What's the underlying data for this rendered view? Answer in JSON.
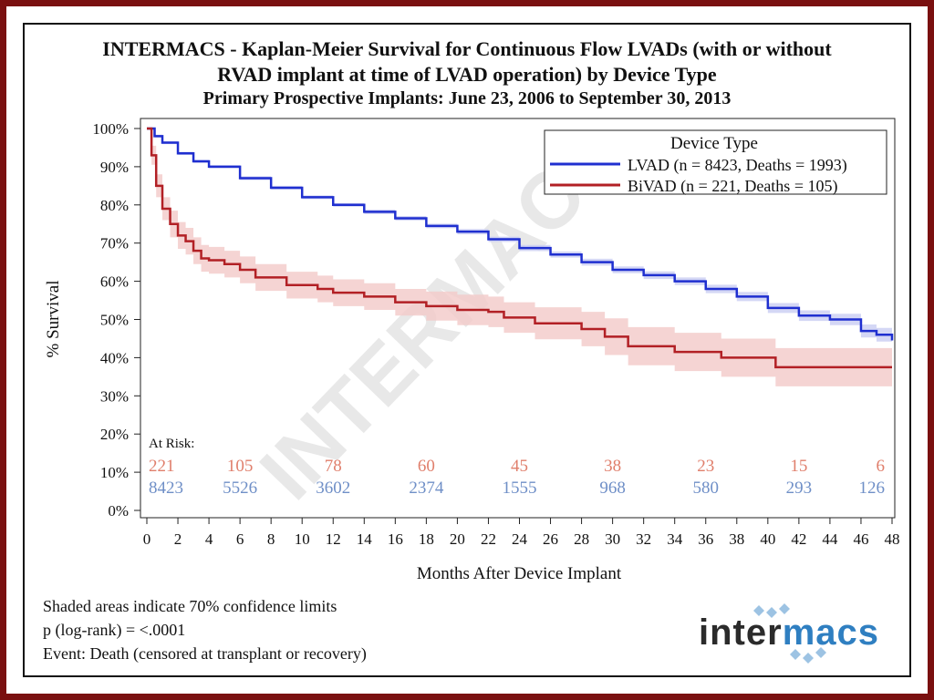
{
  "title_line1": "INTERMACS - Kaplan-Meier Survival for Continuous Flow LVADs (with or without",
  "title_line2": "RVAD implant at time of LVAD operation) by Device Type",
  "subtitle": "Primary Prospective Implants: June 23, 2006 to September 30, 2013",
  "watermark": "INTERMACS",
  "notes": [
    "Shaded areas indicate 70% confidence limits",
    "p (log-rank) = <.0001",
    "Event: Death (censored at transplant or recovery)"
  ],
  "logo": {
    "part1": "inter",
    "part2": "macs",
    "color1": "#2b2b2b",
    "color2": "#2f7fc1"
  },
  "colors": {
    "lvad": "#1f2fd0",
    "bivad": "#b22025",
    "lvad_band": "#c9cdf2",
    "bivad_band": "#f3c9c8",
    "lvad_risk": "#6f8fc7",
    "bivad_risk": "#e07f6c",
    "frame": "#7a1010"
  },
  "chart_data": {
    "type": "line",
    "xlabel": "Months After Device Implant",
    "ylabel": "% Survival",
    "xlim": [
      0,
      48
    ],
    "ylim": [
      0,
      100
    ],
    "x_ticks": [
      "0",
      "2",
      "4",
      "6",
      "8",
      "10",
      "12",
      "14",
      "16",
      "18",
      "20",
      "22",
      "24",
      "26",
      "28",
      "30",
      "32",
      "34",
      "36",
      "38",
      "40",
      "42",
      "44",
      "46",
      "48"
    ],
    "y_ticks": [
      "0%",
      "10%",
      "20%",
      "30%",
      "40%",
      "50%",
      "60%",
      "70%",
      "80%",
      "90%",
      "100%"
    ],
    "legend": {
      "title": "Device Type",
      "position": "top-right",
      "entries": [
        "LVAD (n = 8423, Deaths = 1993)",
        "BiVAD (n = 221, Deaths = 105)"
      ]
    },
    "series": [
      {
        "name": "LVAD (n = 8423, Deaths = 1993)",
        "x": [
          0,
          0.5,
          1,
          2,
          3,
          4,
          6,
          8,
          10,
          12,
          14,
          16,
          18,
          20,
          22,
          24,
          26,
          28,
          30,
          32,
          34,
          36,
          38,
          40,
          42,
          44,
          46,
          47,
          48
        ],
        "y": [
          100,
          98,
          96.3,
          93.5,
          91.4,
          90,
          87,
          84.5,
          82,
          80,
          78.2,
          76.5,
          74.5,
          73,
          71,
          68.7,
          67,
          65,
          63,
          61.6,
          60,
          58,
          56,
          53,
          51,
          50,
          47,
          46,
          44.5
        ],
        "band_width": [
          0.3,
          0.4,
          0.4,
          0.4,
          0.4,
          0.4,
          0.5,
          0.5,
          0.5,
          0.5,
          0.6,
          0.6,
          0.6,
          0.7,
          0.7,
          0.8,
          0.8,
          0.9,
          0.9,
          1.0,
          1.0,
          1.1,
          1.2,
          1.3,
          1.4,
          1.5,
          1.7,
          1.8,
          2.0
        ]
      },
      {
        "name": "BiVAD (n = 221, Deaths = 105)",
        "x": [
          0,
          0.3,
          0.6,
          1,
          1.5,
          2,
          2.5,
          3,
          3.5,
          4,
          5,
          6,
          7,
          9,
          11,
          12,
          14,
          16,
          18,
          20,
          22,
          23,
          25,
          28,
          29.5,
          31,
          34,
          37,
          40.5,
          44,
          48
        ],
        "y": [
          100,
          93,
          85,
          79,
          75,
          72,
          70.5,
          68,
          66,
          65.5,
          64.5,
          63,
          61,
          59,
          58,
          57,
          56,
          54.5,
          53.5,
          52.5,
          52,
          50.5,
          49,
          47.5,
          45.5,
          43,
          41.5,
          40,
          37.5,
          37.5,
          37.5
        ],
        "band_width": [
          0,
          2.5,
          3,
          3,
          3.5,
          3.5,
          3.5,
          3.5,
          3.5,
          3.5,
          3.5,
          3.5,
          3.5,
          3.5,
          3.5,
          3.5,
          3.5,
          3.5,
          3.8,
          4,
          4,
          4,
          4.2,
          4.5,
          4.8,
          5,
          5,
          5,
          5,
          5,
          5
        ]
      }
    ],
    "at_risk": {
      "label": "At Risk:",
      "months": [
        0,
        6,
        12,
        18,
        24,
        30,
        36,
        42,
        48
      ],
      "bivad": [
        "221",
        "105",
        "78",
        "60",
        "45",
        "38",
        "23",
        "15",
        "6"
      ],
      "lvad": [
        "8423",
        "5526",
        "3602",
        "2374",
        "1555",
        "968",
        "580",
        "293",
        "126"
      ]
    }
  }
}
